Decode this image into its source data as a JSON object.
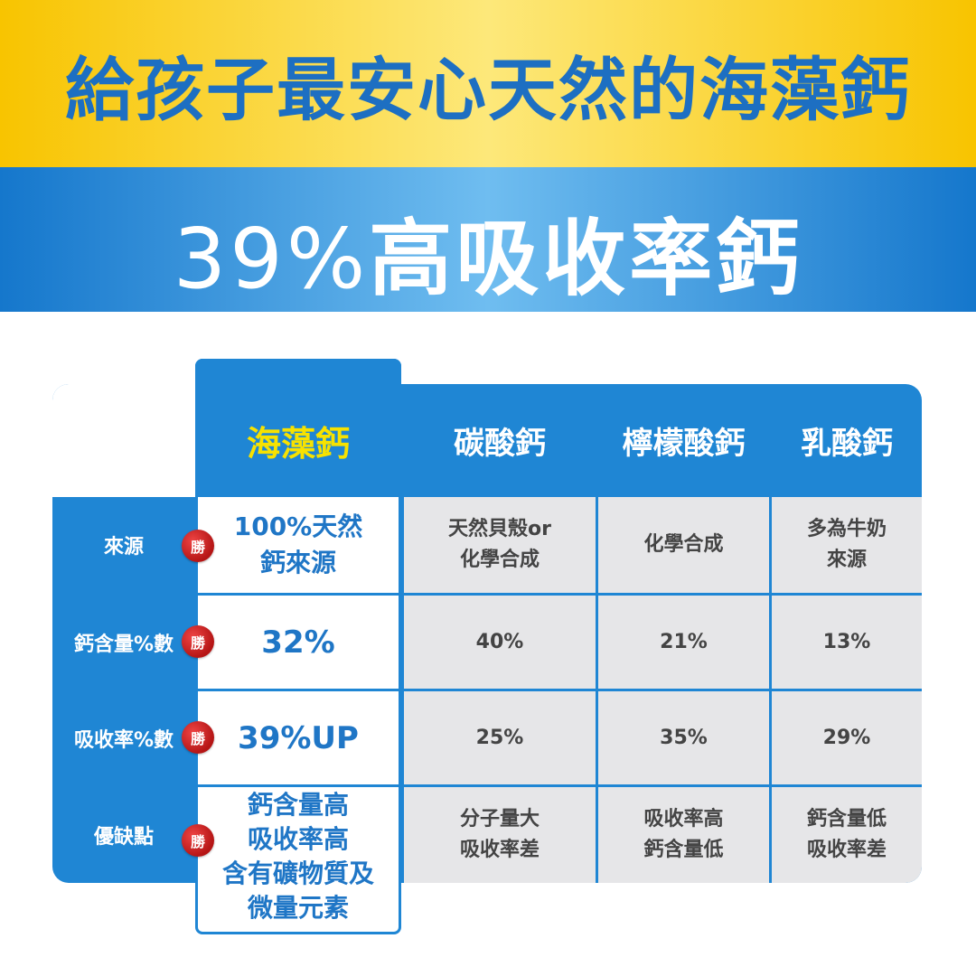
{
  "headline": "給孩子最安心天然的海藻鈣",
  "subheadline_pct": "39%",
  "subheadline_text": "高吸收率鈣",
  "table": {
    "headers": [
      "海藻鈣",
      "碳酸鈣",
      "檸檬酸鈣",
      "乳酸鈣"
    ],
    "rows": [
      {
        "label": "來源",
        "featured": "100%天然\n鈣來源",
        "c1": "天然貝殼or\n化學合成",
        "c2": "化學合成",
        "c3": "多為牛奶\n來源"
      },
      {
        "label": "鈣含量%數",
        "featured": "32%",
        "c1": "40%",
        "c2": "21%",
        "c3": "13%"
      },
      {
        "label": "吸收率%數",
        "featured": "39%UP",
        "c1": "25%",
        "c2": "35%",
        "c3": "29%"
      },
      {
        "label": "優缺點",
        "featured": "鈣含量高\n吸收率高\n含有礦物質及\n微量元素",
        "c1": "分子量大\n吸收率差",
        "c2": "吸收率高\n鈣含量低",
        "c3": "鈣含量低\n吸收率差"
      }
    ],
    "badge": "勝"
  },
  "colors": {
    "brand_blue": "#1f86d4",
    "accent_yellow": "#f7e200",
    "badge_red": "#c41e1e",
    "band_yellow": "#f8c400"
  }
}
